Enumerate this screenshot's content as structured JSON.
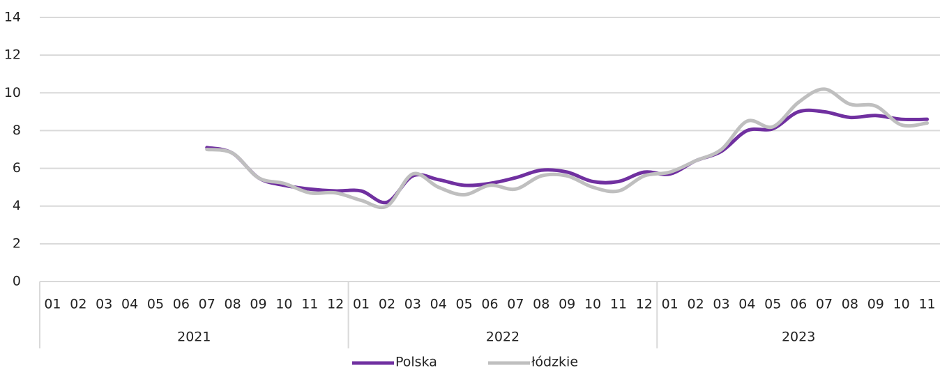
{
  "chart_data": {
    "type": "line",
    "categories": [
      "01",
      "02",
      "03",
      "04",
      "05",
      "06",
      "07",
      "08",
      "09",
      "10",
      "11",
      "12",
      "01",
      "02",
      "03",
      "04",
      "05",
      "06",
      "07",
      "08",
      "09",
      "10",
      "11",
      "12",
      "01",
      "02",
      "03",
      "04",
      "05",
      "06",
      "07",
      "08",
      "09",
      "10",
      "11"
    ],
    "year_groups": [
      {
        "label": "2021",
        "span": 12
      },
      {
        "label": "2022",
        "span": 12
      },
      {
        "label": "2023",
        "span": 11
      }
    ],
    "series": [
      {
        "name": "Polska",
        "color": "#7030a0",
        "values": [
          null,
          null,
          null,
          null,
          null,
          null,
          7.1,
          6.8,
          5.5,
          5.1,
          4.9,
          4.8,
          4.8,
          4.2,
          5.6,
          5.4,
          5.1,
          5.2,
          5.5,
          5.9,
          5.8,
          5.3,
          5.3,
          5.8,
          5.7,
          6.4,
          6.9,
          8.0,
          8.1,
          9.0,
          9.0,
          8.7,
          8.8,
          8.6,
          8.6
        ]
      },
      {
        "name": "łódzkie",
        "color": "#bfbfbf",
        "values": [
          null,
          null,
          null,
          null,
          null,
          null,
          7.0,
          6.8,
          5.5,
          5.2,
          4.7,
          4.7,
          4.3,
          4.0,
          5.7,
          5.0,
          4.6,
          5.1,
          4.9,
          5.6,
          5.6,
          5.0,
          4.8,
          5.6,
          5.8,
          6.4,
          7.0,
          8.5,
          8.2,
          9.5,
          10.2,
          9.4,
          9.3,
          8.3,
          8.4
        ]
      }
    ],
    "ylim": [
      0,
      14
    ],
    "yticks": [
      0,
      2,
      4,
      6,
      8,
      10,
      12,
      14
    ],
    "grid": true,
    "legend": "bottom"
  }
}
